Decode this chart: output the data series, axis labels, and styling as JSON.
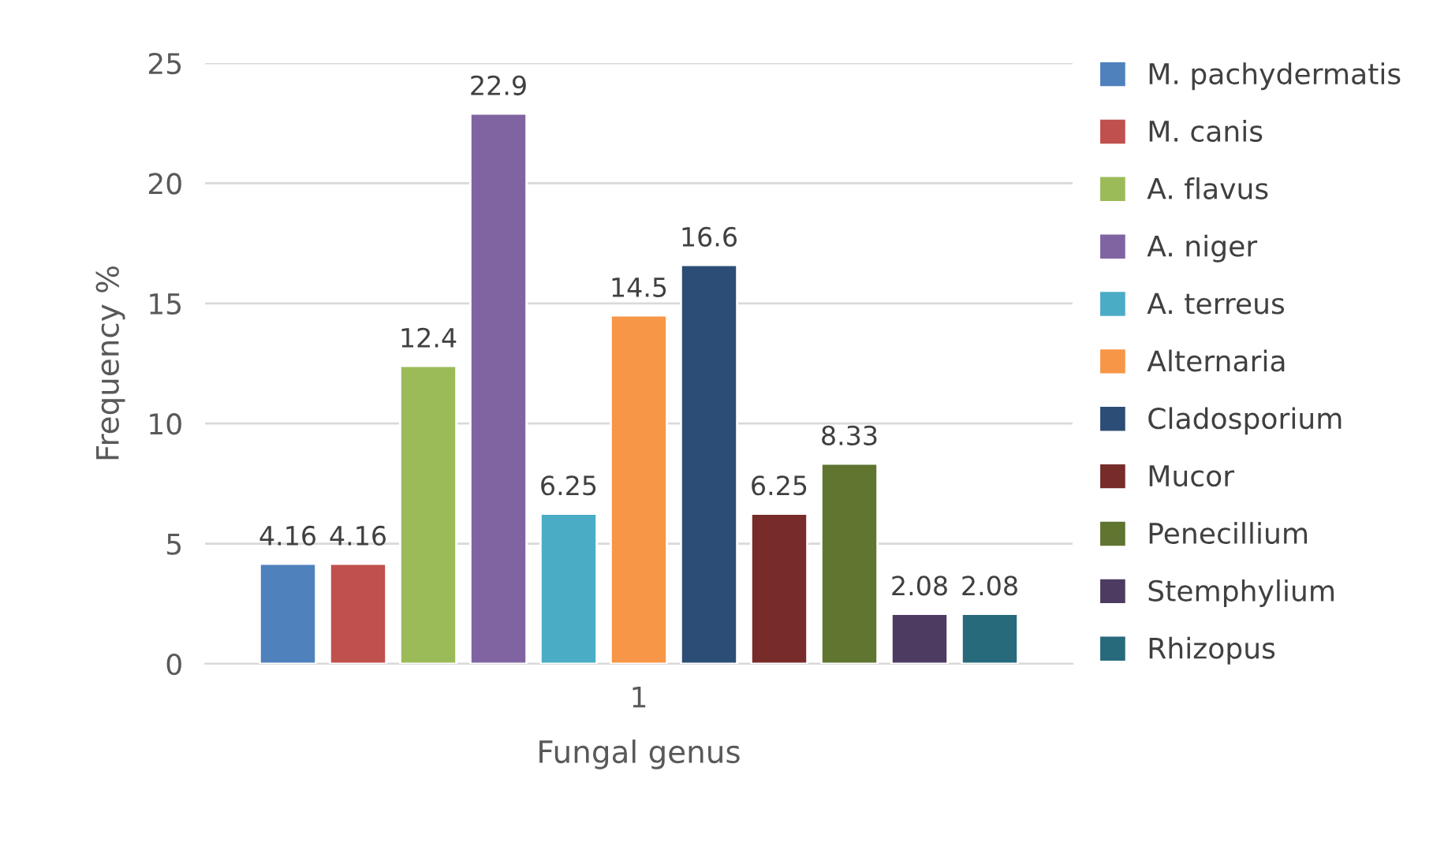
{
  "chart_data": {
    "type": "bar",
    "xlabel": "Fungal genus",
    "ylabel": "Frequency %",
    "categories": [
      "1"
    ],
    "series": [
      {
        "name": "M. pachydermatis",
        "color": "#4f81bd",
        "values": [
          4.16
        ]
      },
      {
        "name": "M. canis",
        "color": "#c0504d",
        "values": [
          4.16
        ]
      },
      {
        "name": "A. flavus",
        "color": "#9bbb59",
        "values": [
          12.4
        ]
      },
      {
        "name": "A. niger",
        "color": "#8064a2",
        "values": [
          22.9
        ]
      },
      {
        "name": "A. terreus",
        "color": "#4bacc6",
        "values": [
          6.25
        ]
      },
      {
        "name": "Alternaria",
        "color": "#f79646",
        "values": [
          14.5
        ]
      },
      {
        "name": "Cladosporium",
        "color": "#2c4d75",
        "values": [
          16.6
        ]
      },
      {
        "name": "Mucor",
        "color": "#772c2a",
        "values": [
          6.25
        ]
      },
      {
        "name": "Penecillium",
        "color": "#5f7530",
        "values": [
          8.33
        ]
      },
      {
        "name": "Stemphylium",
        "color": "#4d3b62",
        "values": [
          2.08
        ]
      },
      {
        "name": "Rhizopus",
        "color": "#276a7c",
        "values": [
          2.08
        ]
      }
    ],
    "ylim": [
      0,
      25
    ],
    "yticks": [
      0,
      5,
      10,
      15,
      20,
      25
    ],
    "grid": "y",
    "legend": "right",
    "data_labels": true
  }
}
